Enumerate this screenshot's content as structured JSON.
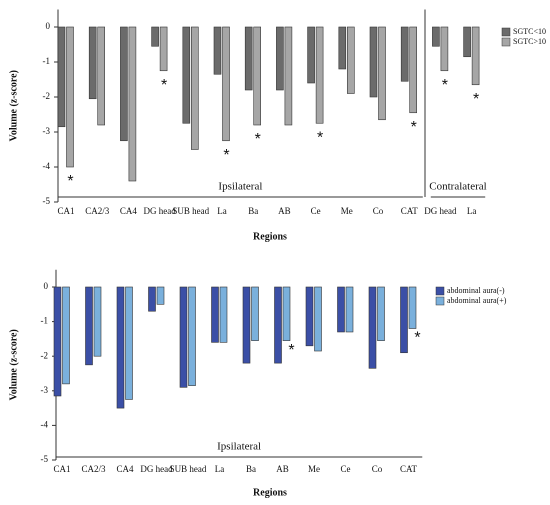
{
  "chart_data": [
    {
      "type": "bar",
      "xlabel": "Regions",
      "ylabel": "Volume (z-score)",
      "categories": [
        "CA1",
        "CA2/3",
        "CA4",
        "DG head",
        "SUB head",
        "La",
        "Ba",
        "AB",
        "Ce",
        "Me",
        "Co",
        "CAT",
        "DG head",
        "La"
      ],
      "groups": [
        "Ipsilateral",
        "Contralateral"
      ],
      "markers": [
        "*",
        null,
        null,
        "*",
        null,
        "*",
        "*",
        null,
        "*",
        null,
        null,
        "*",
        "*",
        "*"
      ],
      "series": [
        {
          "name": "SGTC<10",
          "color": "#6b6b6b",
          "values": [
            -2.85,
            -2.05,
            -3.25,
            -0.55,
            -2.75,
            -1.35,
            -1.8,
            -1.8,
            -1.6,
            -1.2,
            -2.0,
            -1.55,
            -0.55,
            -0.85
          ]
        },
        {
          "name": "SGTC>10",
          "color": "#a6a6a6",
          "values": [
            -4.0,
            -2.8,
            -4.4,
            -1.25,
            -3.5,
            -3.25,
            -2.8,
            -2.8,
            -2.75,
            -1.9,
            -2.65,
            -2.45,
            -1.25,
            -1.65
          ]
        }
      ],
      "ylim": [
        -5,
        0.5
      ],
      "yticks": [
        0,
        -1,
        -2,
        -3,
        -4,
        -5
      ]
    },
    {
      "type": "bar",
      "xlabel": "Regions",
      "ylabel": "Volume (z-score)",
      "categories": [
        "CA1",
        "CA2/3",
        "CA4",
        "DG head",
        "SUB head",
        "La",
        "Ba",
        "AB",
        "Me",
        "Ce",
        "Co",
        "CAT"
      ],
      "groups": [
        "Ipsilateral"
      ],
      "markers": [
        null,
        null,
        null,
        null,
        null,
        null,
        null,
        "*",
        null,
        null,
        null,
        "*"
      ],
      "series": [
        {
          "name": "abdominal aura(-)",
          "color": "#3b4fa6",
          "values": [
            -3.15,
            -2.25,
            -3.5,
            -0.7,
            -2.9,
            -1.6,
            -2.2,
            -2.2,
            -1.7,
            -1.3,
            -2.35,
            -1.9
          ]
        },
        {
          "name": "abdominal aura(+)",
          "color": "#7ab0dc",
          "values": [
            -2.8,
            -2.0,
            -3.25,
            -0.5,
            -2.85,
            -1.6,
            -1.55,
            -1.55,
            -1.85,
            -1.3,
            -1.55,
            -1.2
          ]
        }
      ],
      "ylim": [
        -5,
        0.5
      ],
      "yticks": [
        0,
        -1,
        -2,
        -3,
        -4,
        -5
      ]
    }
  ]
}
